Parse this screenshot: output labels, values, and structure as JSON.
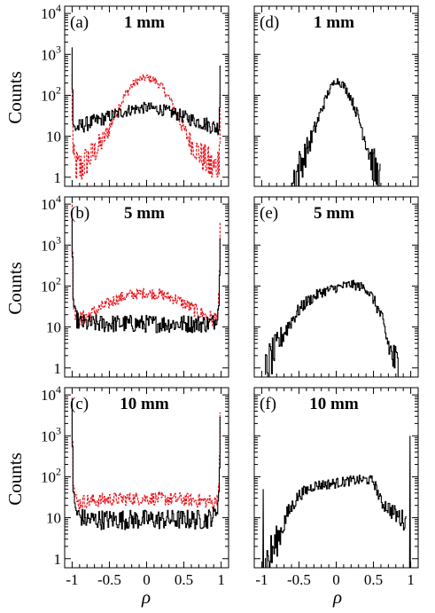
{
  "chart_data": {
    "type": "line",
    "shared_xlabel": "ρ",
    "ylabel": "Counts",
    "x_ticks": [
      -1,
      -0.5,
      0,
      0.5,
      1
    ],
    "x_tick_labels": [
      "-1",
      "-0.5",
      "0",
      "0.5",
      "1"
    ],
    "y_ticks": [
      1,
      10,
      100,
      1000,
      10000
    ],
    "y_tick_labels": [
      {
        "base": "1",
        "exp": ""
      },
      {
        "base": "10",
        "exp": ""
      },
      {
        "base": "10",
        "exp": "2"
      },
      {
        "base": "10",
        "exp": "3"
      },
      {
        "base": "10",
        "exp": "4"
      }
    ],
    "xlim": [
      -1.1,
      1.1
    ],
    "ylim": [
      0.6,
      15000
    ],
    "y_scale": "log",
    "colors": {
      "black": "#000000",
      "red": "#e8141c"
    },
    "panels": [
      {
        "id": "a",
        "label": "(a)",
        "title": "1 mm",
        "column": "left",
        "series": [
          {
            "color": "red",
            "style": "dashed",
            "noisy": true,
            "min": 0.6,
            "x": [
              -1.0,
              -0.98,
              -0.95,
              -0.9,
              -0.8,
              -0.7,
              -0.6,
              -0.5,
              -0.4,
              -0.3,
              -0.2,
              -0.1,
              0.0,
              0.1,
              0.2,
              0.3,
              0.4,
              0.5,
              0.6,
              0.7,
              0.8,
              0.9,
              0.95,
              0.98,
              1.0
            ],
            "y": [
              300,
              3,
              2,
              1.5,
              2.5,
              4,
              7,
              15,
              40,
              90,
              170,
              240,
              270,
              240,
              170,
              90,
              40,
              15,
              7,
              4,
              2.5,
              1.5,
              2,
              3,
              300
            ]
          },
          {
            "color": "black",
            "style": "solid",
            "noisy": true,
            "min": 0.6,
            "x": [
              -1.0,
              -0.98,
              -0.95,
              -0.9,
              -0.8,
              -0.6,
              -0.4,
              -0.2,
              0.0,
              0.2,
              0.4,
              0.6,
              0.8,
              0.9,
              0.95,
              0.98,
              1.0
            ],
            "y": [
              1500,
              16,
              16,
              17,
              20,
              26,
              35,
              45,
              50,
              45,
              35,
              26,
              20,
              17,
              16,
              18,
              1500
            ]
          }
        ]
      },
      {
        "id": "b",
        "label": "(b)",
        "title": "5 mm",
        "column": "left",
        "series": [
          {
            "color": "red",
            "style": "dashed",
            "noisy": true,
            "min": 0.6,
            "x": [
              -1.0,
              -0.98,
              -0.96,
              -0.93,
              -0.9,
              -0.8,
              -0.6,
              -0.4,
              -0.2,
              0.0,
              0.2,
              0.4,
              0.6,
              0.8,
              0.9,
              0.93,
              0.96,
              0.98,
              1.0
            ],
            "y": [
              10000,
              60,
              25,
              17,
              15,
              18,
              30,
              48,
              62,
              68,
              62,
              48,
              30,
              18,
              15,
              17,
              25,
              60,
              10000
            ]
          },
          {
            "color": "black",
            "style": "solid",
            "noisy": true,
            "min": 0.6,
            "x": [
              -1.0,
              -0.98,
              -0.96,
              -0.93,
              -0.9,
              -0.8,
              -0.5,
              0.0,
              0.5,
              0.8,
              0.9,
              0.93,
              0.96,
              0.98,
              1.0
            ],
            "y": [
              5000,
              50,
              22,
              15,
              13,
              12,
              12,
              12,
              12,
              12,
              13,
              15,
              22,
              50,
              5000
            ]
          }
        ]
      },
      {
        "id": "c",
        "label": "(c)",
        "title": "10 mm",
        "column": "left",
        "series": [
          {
            "color": "red",
            "style": "dashed",
            "noisy": true,
            "min": 0.6,
            "x": [
              -1.0,
              -0.98,
              -0.96,
              -0.93,
              -0.9,
              -0.85,
              -0.5,
              0.0,
              0.5,
              0.85,
              0.9,
              0.93,
              0.96,
              0.98,
              1.0
            ],
            "y": [
              10000,
              80,
              35,
              25,
              22,
              25,
              28,
              30,
              28,
              25,
              22,
              25,
              35,
              80,
              10000
            ]
          },
          {
            "color": "black",
            "style": "solid",
            "noisy": true,
            "min": 0.6,
            "x": [
              -1.0,
              -0.98,
              -0.96,
              -0.93,
              -0.9,
              -0.8,
              -0.5,
              0.0,
              0.5,
              0.8,
              0.9,
              0.93,
              0.96,
              0.98,
              1.0
            ],
            "y": [
              8000,
              50,
              20,
              13,
              11,
              9,
              9,
              9,
              9,
              9,
              11,
              13,
              20,
              50,
              8000
            ]
          }
        ]
      },
      {
        "id": "d",
        "label": "(d)",
        "title": "1 mm",
        "column": "right",
        "series": [
          {
            "color": "black",
            "style": "solid",
            "noisy": true,
            "min": 0.6,
            "x": [
              -0.6,
              -0.5,
              -0.4,
              -0.3,
              -0.2,
              -0.1,
              0.0,
              0.1,
              0.2,
              0.3,
              0.4,
              0.5,
              0.6
            ],
            "y": [
              0.6,
              1.5,
              4,
              12,
              40,
              120,
              240,
              180,
              90,
              30,
              8,
              2,
              0.6
            ]
          }
        ]
      },
      {
        "id": "e",
        "label": "(e)",
        "title": "5 mm",
        "column": "right",
        "series": [
          {
            "color": "black",
            "style": "solid",
            "noisy": true,
            "min": 0.6,
            "x": [
              -0.95,
              -0.9,
              -0.8,
              -0.7,
              -0.6,
              -0.5,
              -0.4,
              -0.2,
              0.0,
              0.2,
              0.4,
              0.5,
              0.6,
              0.7,
              0.8,
              0.9
            ],
            "y": [
              0.6,
              1.2,
              3,
              7,
              14,
              25,
              40,
              70,
              90,
              110,
              90,
              50,
              20,
              4,
              1.2,
              0.6
            ]
          }
        ]
      },
      {
        "id": "f",
        "label": "(f)",
        "title": "10 mm",
        "column": "right",
        "series": [
          {
            "color": "black",
            "style": "solid",
            "noisy": true,
            "min": 0.6,
            "x": [
              -0.95,
              -0.85,
              -0.75,
              -0.65,
              -0.5,
              -0.3,
              0.0,
              0.2,
              0.4,
              0.5,
              0.55,
              0.6,
              0.7,
              0.8,
              0.9,
              0.95
            ],
            "y": [
              0.6,
              1.5,
              4,
              12,
              35,
              60,
              70,
              80,
              85,
              80,
              50,
              25,
              18,
              12,
              9,
              8
            ]
          },
          {
            "color": "black",
            "style": "solid",
            "noisy": false,
            "min": 0.6,
            "x": [
              -0.985,
              -0.98,
              -0.975
            ],
            "y": [
              0.6,
              50,
              0.6
            ]
          },
          {
            "color": "black",
            "style": "solid",
            "noisy": false,
            "min": 0.6,
            "x": [
              0.985,
              0.99,
              0.995
            ],
            "y": [
              0.6,
              1000,
              0.6
            ]
          }
        ]
      }
    ]
  }
}
